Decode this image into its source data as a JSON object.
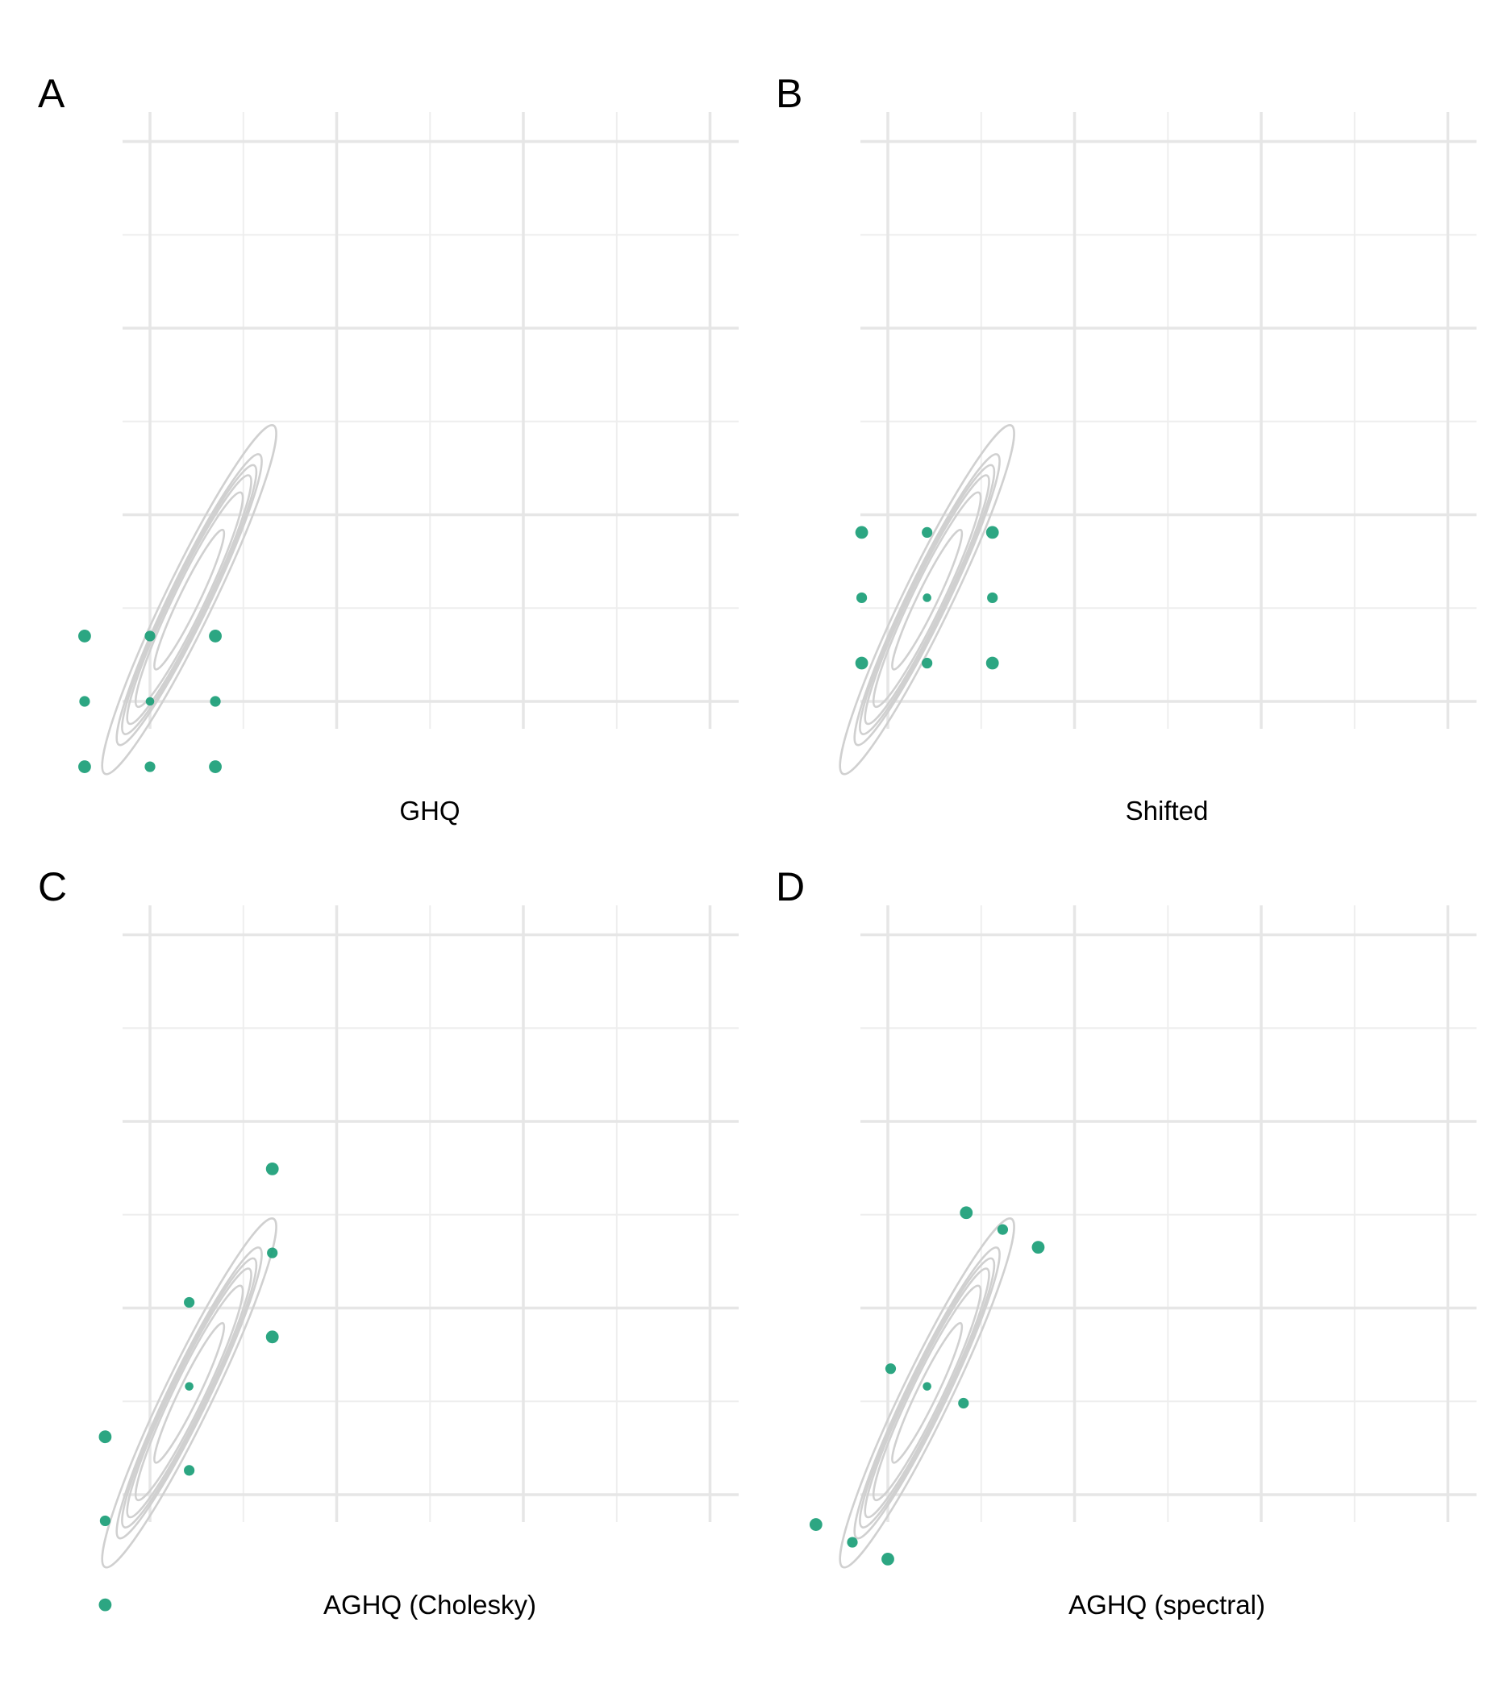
{
  "panels": [
    {
      "letter": "A",
      "caption": "GHQ"
    },
    {
      "letter": "B",
      "caption": "Shifted"
    },
    {
      "letter": "C",
      "caption": "AGHQ (Cholesky)"
    },
    {
      "letter": "D",
      "caption": "AGHQ (spectral)"
    }
  ],
  "colors": {
    "point": "#1a9e77",
    "contour": "#d0d0d0",
    "grid_major": "#e6e6e6",
    "grid_minor": "#eeeeee"
  },
  "chart_data": [
    {
      "type": "scatter",
      "title": "GHQ",
      "xlabel": "",
      "ylabel": "",
      "xlim": [
        -2.15,
        4.45
      ],
      "ylim": [
        -2.15,
        4.45
      ],
      "grid": true,
      "contour_center": [
        0.42,
        1.09
      ],
      "points": [
        {
          "x": -0.7,
          "y": 0.7,
          "w": 0.3
        },
        {
          "x": 0.0,
          "y": 0.7,
          "w": 0.2
        },
        {
          "x": 0.7,
          "y": 0.7,
          "w": 0.3
        },
        {
          "x": -0.7,
          "y": 0.0,
          "w": 0.2
        },
        {
          "x": 0.0,
          "y": 0.0,
          "w": 0.1
        },
        {
          "x": 0.7,
          "y": 0.0,
          "w": 0.2
        },
        {
          "x": -0.7,
          "y": -0.7,
          "w": 0.3
        },
        {
          "x": 0.0,
          "y": -0.7,
          "w": 0.2
        },
        {
          "x": 0.7,
          "y": -0.7,
          "w": 0.3
        }
      ]
    },
    {
      "type": "scatter",
      "title": "Shifted",
      "xlabel": "",
      "ylabel": "",
      "xlim": [
        -2.15,
        4.45
      ],
      "ylim": [
        -2.15,
        4.45
      ],
      "grid": true,
      "contour_center": [
        0.42,
        1.09
      ],
      "points": [
        {
          "x": -0.28,
          "y": 1.81,
          "w": 0.3
        },
        {
          "x": 0.42,
          "y": 1.81,
          "w": 0.2
        },
        {
          "x": 1.12,
          "y": 1.81,
          "w": 0.3
        },
        {
          "x": -0.28,
          "y": 1.11,
          "w": 0.2
        },
        {
          "x": 0.42,
          "y": 1.11,
          "w": 0.1
        },
        {
          "x": 1.12,
          "y": 1.11,
          "w": 0.2
        },
        {
          "x": -0.28,
          "y": 0.41,
          "w": 0.3
        },
        {
          "x": 0.42,
          "y": 0.41,
          "w": 0.2
        },
        {
          "x": 1.12,
          "y": 0.41,
          "w": 0.3
        }
      ]
    },
    {
      "type": "scatter",
      "title": "AGHQ (Cholesky)",
      "xlabel": "",
      "ylabel": "",
      "xlim": [
        -2.15,
        4.45
      ],
      "ylim": [
        -2.15,
        4.45
      ],
      "grid": true,
      "contour_center": [
        0.42,
        1.09
      ],
      "points": [
        {
          "x": 1.31,
          "y": 3.49,
          "w": 0.3
        },
        {
          "x": 1.31,
          "y": 2.59,
          "w": 0.2
        },
        {
          "x": 1.31,
          "y": 1.69,
          "w": 0.3
        },
        {
          "x": 0.42,
          "y": 2.06,
          "w": 0.2
        },
        {
          "x": 0.42,
          "y": 1.16,
          "w": 0.1
        },
        {
          "x": 0.42,
          "y": 0.26,
          "w": 0.2
        },
        {
          "x": -0.48,
          "y": 0.62,
          "w": 0.3
        },
        {
          "x": -0.48,
          "y": -0.28,
          "w": 0.2
        },
        {
          "x": -0.48,
          "y": -1.18,
          "w": 0.3
        }
      ]
    },
    {
      "type": "scatter",
      "title": "AGHQ (spectral)",
      "xlabel": "",
      "ylabel": "",
      "xlim": [
        -2.15,
        4.45
      ],
      "ylim": [
        -2.15,
        4.45
      ],
      "grid": true,
      "contour_center": [
        0.42,
        1.09
      ],
      "points": [
        {
          "x": 0.84,
          "y": 3.02,
          "w": 0.3
        },
        {
          "x": 1.23,
          "y": 2.84,
          "w": 0.2
        },
        {
          "x": 1.61,
          "y": 2.65,
          "w": 0.3
        },
        {
          "x": 0.03,
          "y": 1.35,
          "w": 0.2
        },
        {
          "x": 0.42,
          "y": 1.16,
          "w": 0.1
        },
        {
          "x": 0.81,
          "y": 0.98,
          "w": 0.2
        },
        {
          "x": -0.77,
          "y": -0.32,
          "w": 0.3
        },
        {
          "x": -0.38,
          "y": -0.51,
          "w": 0.2
        },
        {
          "x": 0.0,
          "y": -0.69,
          "w": 0.3
        }
      ]
    }
  ]
}
